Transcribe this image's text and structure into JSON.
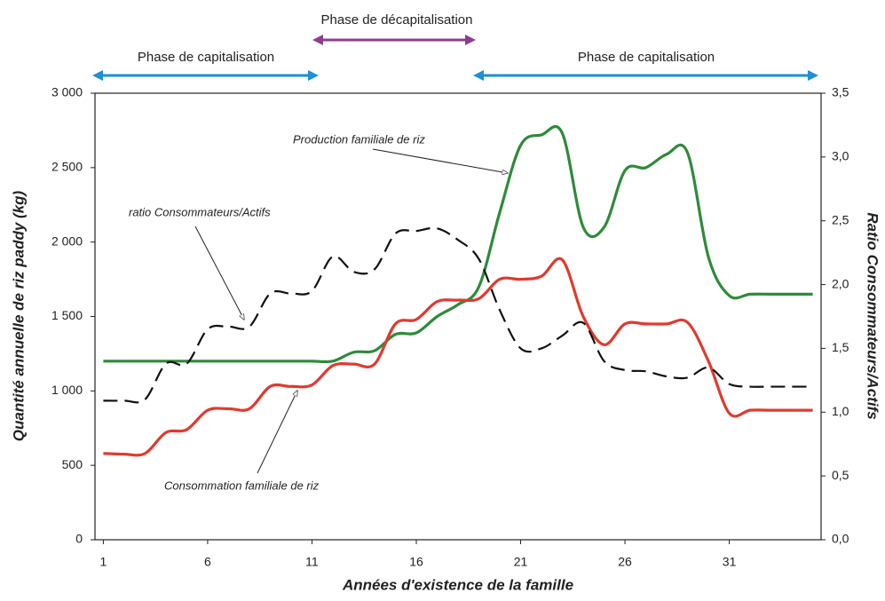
{
  "chart_data": {
    "type": "line",
    "xlabel": "Années d'existence de la famille",
    "ylabel": "Quantité annuelle de riz paddy (kg)",
    "y2label": "Ratio Consommateurs/Actifs",
    "annotations": [
      "Phase de décapitalisation",
      "Phase de capitalisation",
      "Phase de capitalisation"
    ],
    "x": [
      1,
      2,
      3,
      4,
      5,
      6,
      7,
      8,
      9,
      10,
      11,
      12,
      13,
      14,
      15,
      16,
      17,
      18,
      19,
      20,
      21,
      22,
      23,
      24,
      25,
      26,
      27,
      28,
      29,
      30,
      31,
      32,
      33,
      34,
      35
    ],
    "series": [
      {
        "name": "Production familiale de riz",
        "color": "#2e8b3a",
        "dash": false,
        "values": [
          1200,
          1200,
          1200,
          1200,
          1200,
          1200,
          1200,
          1200,
          1200,
          1200,
          1200,
          1200,
          1260,
          1270,
          1380,
          1390,
          1500,
          1580,
          1700,
          2200,
          2650,
          2720,
          2730,
          2100,
          2100,
          2480,
          2500,
          2590,
          2600,
          1900,
          1640,
          1650,
          1650,
          1650,
          1650
        ]
      },
      {
        "name": "Consommation familiale de riz",
        "color": "#e03a2e",
        "dash": false,
        "values": [
          580,
          575,
          580,
          720,
          740,
          870,
          880,
          880,
          1030,
          1030,
          1040,
          1170,
          1180,
          1180,
          1450,
          1480,
          1600,
          1610,
          1620,
          1750,
          1750,
          1770,
          1880,
          1500,
          1310,
          1450,
          1450,
          1450,
          1460,
          1200,
          850,
          870,
          870,
          870,
          870
        ]
      },
      {
        "name": "ratio Consommateurs/Actifs",
        "color": "#111111",
        "dash": true,
        "axis": "y2",
        "values": [
          1.09,
          1.09,
          1.1,
          1.38,
          1.38,
          1.65,
          1.67,
          1.67,
          1.93,
          1.93,
          1.95,
          2.22,
          2.1,
          2.12,
          2.4,
          2.42,
          2.44,
          2.35,
          2.2,
          1.8,
          1.5,
          1.5,
          1.6,
          1.7,
          1.4,
          1.33,
          1.32,
          1.28,
          1.27,
          1.35,
          1.22,
          1.2,
          1.2,
          1.2,
          1.2
        ]
      }
    ],
    "xlim": [
      0.6,
      35.4
    ],
    "xticks": [
      1,
      6,
      11,
      16,
      21,
      26,
      31
    ],
    "ylim": [
      0,
      3000
    ],
    "yticks": [
      0,
      500,
      {
        "value": 1000,
        "label": "1 000"
      },
      {
        "value": 1500,
        "label": "1 500"
      },
      {
        "value": 2000,
        "label": "2 000"
      },
      {
        "value": 2500,
        "label": "2 500"
      },
      {
        "value": 3000,
        "label": "3 000"
      }
    ],
    "y2lim": [
      0,
      3.5
    ],
    "y2ticks": [
      {
        "value": 0,
        "label": "0,0"
      },
      {
        "value": 0.5,
        "label": "0,5"
      },
      {
        "value": 1,
        "label": "1,0"
      },
      {
        "value": 1.5,
        "label": "1,5"
      },
      {
        "value": 2,
        "label": "2,0"
      },
      {
        "value": 2.5,
        "label": "2,5"
      },
      {
        "value": 3,
        "label": "3,0"
      },
      {
        "value": 3.5,
        "label": "3,5"
      }
    ]
  }
}
